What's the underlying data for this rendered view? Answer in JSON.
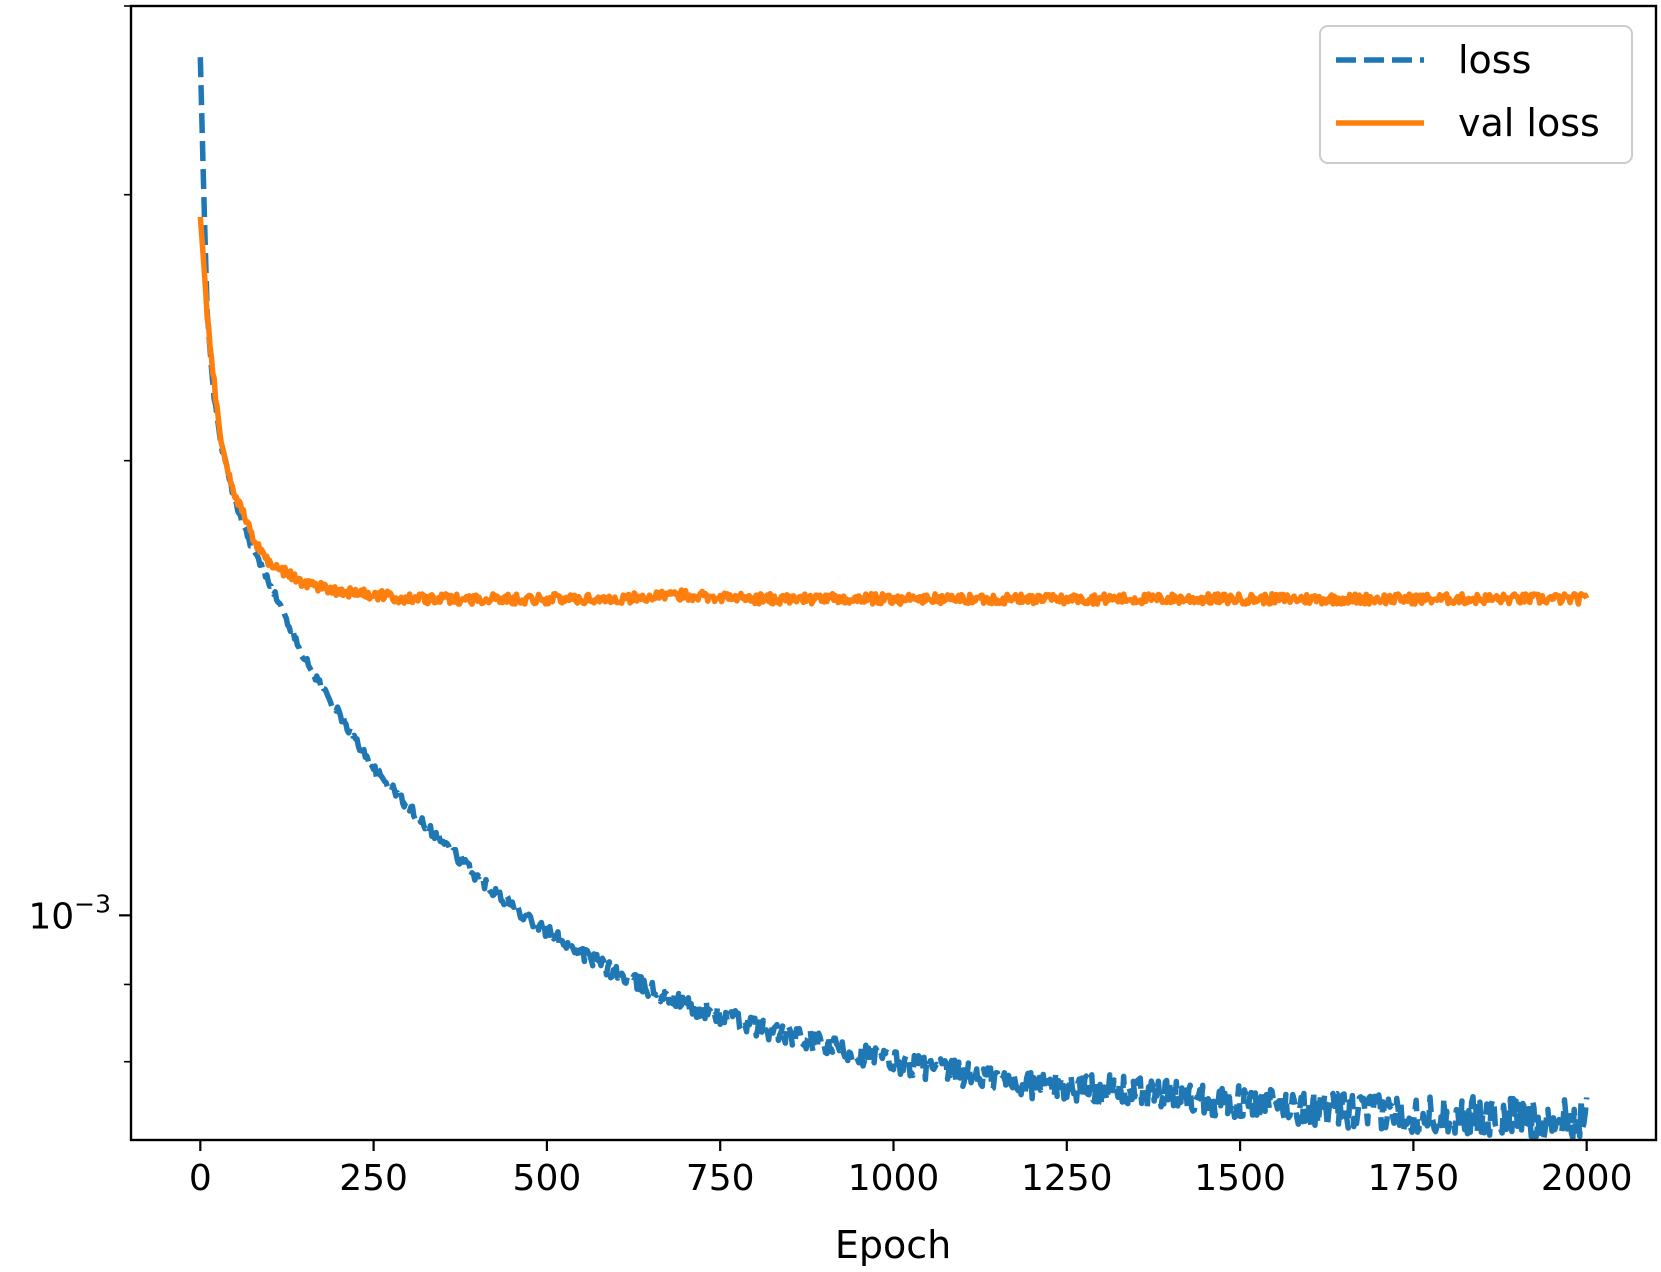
{
  "chart_data": {
    "type": "line",
    "title": "",
    "xlabel": "Epoch",
    "ylabel": "",
    "yscale": "log",
    "grid": false,
    "legend_position": "top-right",
    "xlim": [
      -100,
      2100
    ],
    "ylim": [
      0.00071,
      0.004
    ],
    "x_ticks": [
      0,
      250,
      500,
      750,
      1000,
      1250,
      1500,
      1750,
      2000
    ],
    "x_tick_labels": [
      "0",
      "250",
      "500",
      "750",
      "1000",
      "1250",
      "1500",
      "1750",
      "2000"
    ],
    "y_tick_label": {
      "base": "10",
      "exponent": "−3"
    },
    "series": [
      {
        "name": "loss",
        "color": "#1f77b4",
        "linestyle": "dashed",
        "x": [
          0,
          5,
          10,
          20,
          30,
          50,
          75,
          100,
          150,
          200,
          250,
          300,
          400,
          500,
          600,
          700,
          800,
          900,
          1000,
          1100,
          1200,
          1300,
          1400,
          1500,
          1600,
          1700,
          1800,
          1900,
          1950,
          2000
        ],
        "y": [
          0.0037,
          0.003,
          0.0025,
          0.0022,
          0.00205,
          0.00188,
          0.00175,
          0.00166,
          0.00148,
          0.00136,
          0.00125,
          0.00118,
          0.00106,
          0.000975,
          0.000915,
          0.000872,
          0.000845,
          0.00082,
          0.0008,
          0.000785,
          0.000772,
          0.000768,
          0.00076,
          0.000752,
          0.000745,
          0.00074,
          0.000737,
          0.000735,
          0.00073,
          0.000735
        ]
      },
      {
        "name": "val loss",
        "color": "#ff7f0e",
        "linestyle": "solid",
        "x": [
          0,
          5,
          10,
          20,
          30,
          50,
          75,
          100,
          150,
          200,
          250,
          300,
          400,
          500,
          600,
          700,
          800,
          900,
          1000,
          1100,
          1200,
          1300,
          1400,
          1500,
          1600,
          1700,
          1800,
          1900,
          2000
        ],
        "y": [
          0.0029,
          0.0027,
          0.0025,
          0.00225,
          0.00205,
          0.0019,
          0.00178,
          0.00171,
          0.00166,
          0.00164,
          0.00163,
          0.00162,
          0.00162,
          0.00162,
          0.00162,
          0.00163,
          0.00162,
          0.00162,
          0.00162,
          0.00162,
          0.00162,
          0.00162,
          0.00162,
          0.00162,
          0.00162,
          0.00162,
          0.00162,
          0.00162,
          0.00162
        ]
      }
    ]
  }
}
